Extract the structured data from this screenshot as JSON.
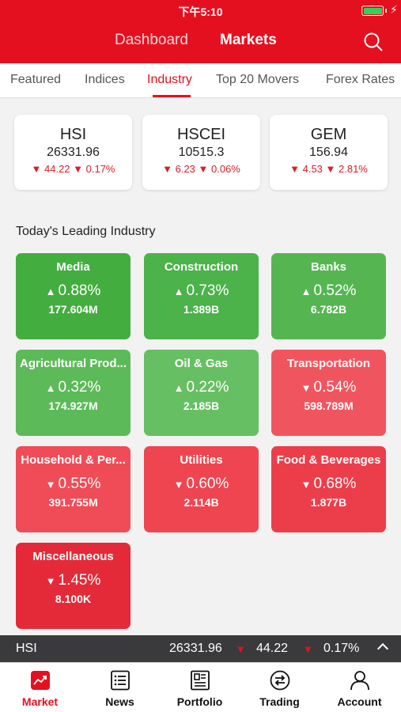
{
  "status_bar": {
    "time": "下午5:10"
  },
  "nav": {
    "tabs": [
      "Dashboard",
      "Markets"
    ],
    "active": "Markets"
  },
  "subtabs": [
    "Featured",
    "Indices",
    "Industry",
    "Top 20 Movers",
    "Forex Rates"
  ],
  "active_subtab": "Industry",
  "indices": [
    {
      "name": "HSI",
      "value": "26331.96",
      "change": "▼ 44.22 ▼ 0.17%"
    },
    {
      "name": "HSCEI",
      "value": "10515.3",
      "change": "▼ 6.23 ▼ 0.06%"
    },
    {
      "name": "GEM",
      "value": "156.94",
      "change": "▼ 4.53 ▼ 2.81%"
    }
  ],
  "section_title": "Today's Leading Industry",
  "industries": [
    {
      "name": "Media",
      "arrow": "▲",
      "pct": "0.88%",
      "volume": "177.604M",
      "direction": "up"
    },
    {
      "name": "Construction",
      "arrow": "▲",
      "pct": "0.73%",
      "volume": "1.389B",
      "direction": "up"
    },
    {
      "name": "Banks",
      "arrow": "▲",
      "pct": "0.52%",
      "volume": "6.782B",
      "direction": "up"
    },
    {
      "name": "Agricultural Prod...",
      "arrow": "▲",
      "pct": "0.32%",
      "volume": "174.927M",
      "direction": "up"
    },
    {
      "name": "Oil & Gas",
      "arrow": "▲",
      "pct": "0.22%",
      "volume": "2.185B",
      "direction": "up"
    },
    {
      "name": "Transportation",
      "arrow": "▼",
      "pct": "0.54%",
      "volume": "598.789M",
      "direction": "down"
    },
    {
      "name": "Household & Per...",
      "arrow": "▼",
      "pct": "0.55%",
      "volume": "391.755M",
      "direction": "down"
    },
    {
      "name": "Utilities",
      "arrow": "▼",
      "pct": "0.60%",
      "volume": "2.114B",
      "direction": "down"
    },
    {
      "name": "Food & Beverages",
      "arrow": "▼",
      "pct": "0.68%",
      "volume": "1.877B",
      "direction": "down"
    },
    {
      "name": "Miscellaneous",
      "arrow": "▼",
      "pct": "1.45%",
      "volume": "8.100K",
      "direction": "down"
    }
  ],
  "ticker": {
    "name": "HSI",
    "value": "26331.96",
    "change": "44.22",
    "pct": "0.17%"
  },
  "bottom_nav": [
    {
      "label": "Market",
      "icon": "chart-icon",
      "active": true
    },
    {
      "label": "News",
      "icon": "news-icon",
      "active": false
    },
    {
      "label": "Portfolio",
      "icon": "portfolio-icon",
      "active": false
    },
    {
      "label": "Trading",
      "icon": "trading-icon",
      "active": false
    },
    {
      "label": "Account",
      "icon": "account-icon",
      "active": false
    }
  ],
  "colors": {
    "brand_red": "#e5101f",
    "up_green": "#4cb24a",
    "down_red": "#ee3e4a",
    "ticker_bg": "#3a3a3c"
  }
}
